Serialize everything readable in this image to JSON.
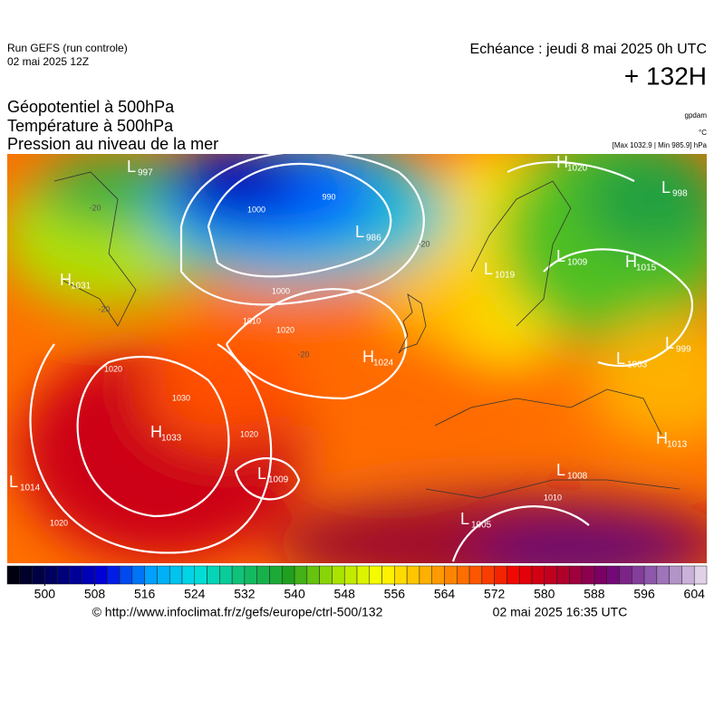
{
  "header": {
    "run": "Run GEFS (run controle)",
    "run_date": "02 mai 2025 12Z",
    "valid": "Echéance : jeudi 8 mai 2025 0h UTC",
    "lead": "+ 132H"
  },
  "titles": [
    "Géopotentiel à 500hPa",
    "Température à 500hPa",
    "Pression au niveau de la mer"
  ],
  "units": {
    "geopotential": "gpdam",
    "temperature": "°C",
    "pressure": "[Max 1032.9 | Min 985.9] hPa"
  },
  "map": {
    "centers": [
      {
        "type": "L",
        "value": 997
      },
      {
        "type": "H",
        "value": 1031
      },
      {
        "type": "L",
        "value": 1014
      },
      {
        "type": "H",
        "value": 1033
      },
      {
        "type": "L",
        "value": 1009
      },
      {
        "type": "H",
        "value": 1024
      },
      {
        "type": "L",
        "value": 986
      },
      {
        "type": "H",
        "value": 1020
      },
      {
        "type": "L",
        "value": 998
      },
      {
        "type": "L",
        "value": 1009
      },
      {
        "type": "H",
        "value": 1015
      },
      {
        "type": "L",
        "value": 1019
      },
      {
        "type": "L",
        "value": 1003
      },
      {
        "type": "L",
        "value": 999
      },
      {
        "type": "H",
        "value": 1013
      },
      {
        "type": "L",
        "value": 1008
      },
      {
        "type": "L",
        "value": 1005
      }
    ],
    "isobar_labels": [
      1000,
      990,
      1000,
      1010,
      1020,
      1020,
      1030,
      1020,
      1020,
      1010
    ],
    "temperature_labels": [
      -20,
      -20,
      -20,
      -20
    ]
  },
  "colorbar": {
    "range": [
      494,
      606
    ],
    "step": 2,
    "ticks": [
      500,
      508,
      516,
      524,
      532,
      540,
      548,
      556,
      564,
      572,
      580,
      588,
      596,
      604
    ],
    "colors": [
      "#000010",
      "#000070",
      "#0000e0",
      "#00a0ff",
      "#00e0e0",
      "#10c070",
      "#20a020",
      "#a0e000",
      "#ffff00",
      "#ffb000",
      "#ff6000",
      "#ee0000",
      "#b0002a",
      "#700070",
      "#9060b0",
      "#e0d0e8"
    ]
  },
  "footer": {
    "source": "© http://www.infoclimat.fr/z/gefs/europe/ctrl-500/132",
    "created": "02 mai 2025 16:35 UTC"
  }
}
